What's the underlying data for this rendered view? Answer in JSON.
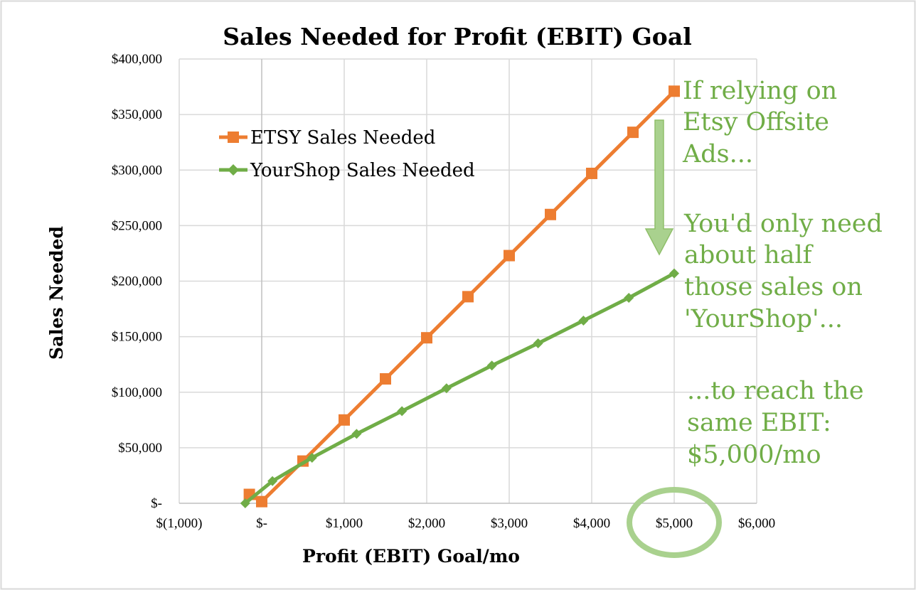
{
  "chart_data": {
    "type": "line",
    "title": "Sales Needed for Profit (EBIT) Goal",
    "xlabel": "Profit (EBIT) Goal/mo",
    "ylabel": "Sales Needed",
    "xlim": [
      -1000,
      6000
    ],
    "ylim": [
      0,
      400000
    ],
    "grid": true,
    "legend_position": "top-left",
    "x_tick_values": [
      -1000,
      0,
      1000,
      2000,
      3000,
      4000,
      5000,
      6000
    ],
    "x_tick_labels": [
      "$(1,000)",
      "$-",
      "$1,000",
      "$2,000",
      "$3,000",
      "$4,000",
      "$5,000",
      "$6,000"
    ],
    "y_tick_values": [
      0,
      50000,
      100000,
      150000,
      200000,
      250000,
      300000,
      350000,
      400000
    ],
    "y_tick_labels": [
      "$-",
      "$50,000",
      "$100,000",
      "$150,000",
      "$200,000",
      "$250,000",
      "$300,000",
      "$350,000",
      "$400,000"
    ],
    "series": [
      {
        "name": "ETSY Sales Needed",
        "color": "#ED7D31",
        "marker": "square",
        "x": [
          -150,
          0,
          500,
          1000,
          1500,
          2000,
          2500,
          3000,
          3500,
          4000,
          4500,
          5000
        ],
        "y": [
          8000,
          1500,
          38000,
          75000,
          112000,
          149000,
          186000,
          223000,
          260000,
          297000,
          334000,
          371000
        ]
      },
      {
        "name": "YourShop Sales Needed",
        "color": "#70AD47",
        "marker": "diamond",
        "x": [
          -200,
          130,
          610,
          1150,
          1700,
          2240,
          2790,
          3350,
          3900,
          4450,
          5000
        ],
        "y": [
          0,
          20000,
          41000,
          62500,
          83000,
          103500,
          124000,
          144000,
          164500,
          185000,
          207000
        ]
      }
    ],
    "annotations": [
      {
        "lines": [
          "If relying on",
          "Etsy Offsite",
          "Ads..."
        ],
        "color": "#70AD47"
      },
      {
        "lines": [
          "You'd only need",
          "about half",
          "those sales on",
          "'YourShop'..."
        ],
        "color": "#70AD47"
      },
      {
        "lines": [
          "...to reach the",
          "same EBIT:",
          "$5,000/mo"
        ],
        "color": "#70AD47"
      }
    ],
    "highlight_x": 5000,
    "highlight_color": "#A9D18E",
    "arrow_color": "#A9D18E"
  }
}
